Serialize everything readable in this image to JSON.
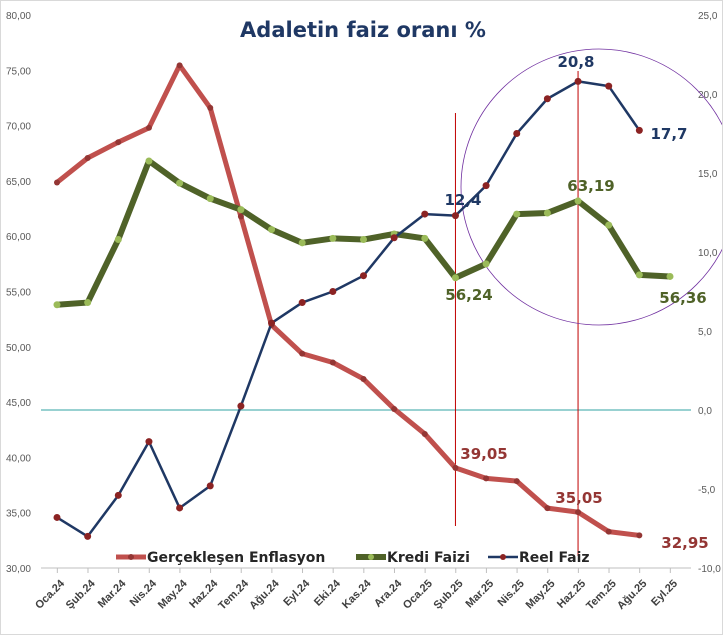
{
  "chart_data": {
    "type": "line",
    "title": "Adaletin faiz oranı %",
    "categories": [
      "Oca.24",
      "Şub.24",
      "Mar.24",
      "Nis.24",
      "May.24",
      "Haz.24",
      "Tem.24",
      "Ağu.24",
      "Eyl.24",
      "Eki.24",
      "Kas.24",
      "Ara.24",
      "Oca.25",
      "Şub.25",
      "Mar.25",
      "Nis.25",
      "May.25",
      "Haz.25",
      "Tem.25",
      "Ağu.25",
      "Eyl.25"
    ],
    "y_left": {
      "min": 30,
      "max": 80,
      "step": 5,
      "tick_labels": [
        "30,00",
        "35,00",
        "40,00",
        "45,00",
        "50,00",
        "55,00",
        "60,00",
        "65,00",
        "70,00",
        "75,00",
        "80,00"
      ]
    },
    "y_right": {
      "min": -10,
      "max": 25,
      "step": 5,
      "tick_labels": [
        "-10,0",
        "-5,0",
        "0,0",
        "5,0",
        "10,0",
        "15,0",
        "20,0",
        "25,0"
      ]
    },
    "grid": false,
    "legend_position": "bottom",
    "series": [
      {
        "name": "Gerçekleşen Enflasyon",
        "axis": "left",
        "color": "#c0504d",
        "marker_color": "#943634",
        "values": [
          64.86,
          67.07,
          68.5,
          69.8,
          75.45,
          71.6,
          61.78,
          51.97,
          49.38,
          48.58,
          47.09,
          44.38,
          42.12,
          39.05,
          38.1,
          37.86,
          35.41,
          35.05,
          33.29,
          32.95,
          null
        ]
      },
      {
        "name": "Kredi Faizi",
        "axis": "left",
        "color": "#4f6228",
        "marker_color": "#9bbb59",
        "values": [
          53.8,
          54.0,
          59.7,
          66.8,
          64.8,
          63.4,
          62.4,
          60.6,
          59.4,
          59.8,
          59.7,
          60.2,
          59.8,
          56.24,
          57.5,
          62.0,
          62.1,
          63.19,
          61.0,
          56.5,
          56.36
        ]
      },
      {
        "name": "Reel Faiz",
        "axis": "right",
        "color": "#1f3864",
        "marker_color": "#8b2323",
        "values": [
          -6.8,
          -8.0,
          -5.4,
          -2.0,
          -6.2,
          -4.8,
          0.25,
          5.5,
          6.8,
          7.5,
          8.5,
          10.9,
          12.4,
          12.3,
          14.2,
          17.5,
          19.7,
          20.8,
          20.5,
          17.7,
          null
        ]
      }
    ],
    "data_labels": [
      {
        "text": "12,4",
        "series": 2,
        "color": "#1f3864"
      },
      {
        "text": "20,8",
        "series": 2,
        "color": "#1f3864"
      },
      {
        "text": "17,7",
        "series": 2,
        "color": "#1f3864"
      },
      {
        "text": "63,19",
        "series": 1,
        "color": "#4f6228"
      },
      {
        "text": "56,24",
        "series": 1,
        "color": "#4f6228"
      },
      {
        "text": "56,36",
        "series": 1,
        "color": "#4f6228"
      },
      {
        "text": "39,05",
        "series": 0,
        "color": "#943634"
      },
      {
        "text": "35,05",
        "series": 0,
        "color": "#943634"
      },
      {
        "text": "32,95",
        "series": 0,
        "color": "#943634"
      }
    ],
    "annotations": {
      "zero_line_color": "#31a3a3",
      "marker_lines": [
        "Şub.25",
        "Haz.25"
      ],
      "marker_line_color": "#c00000",
      "circle_color": "#7030a0"
    }
  }
}
